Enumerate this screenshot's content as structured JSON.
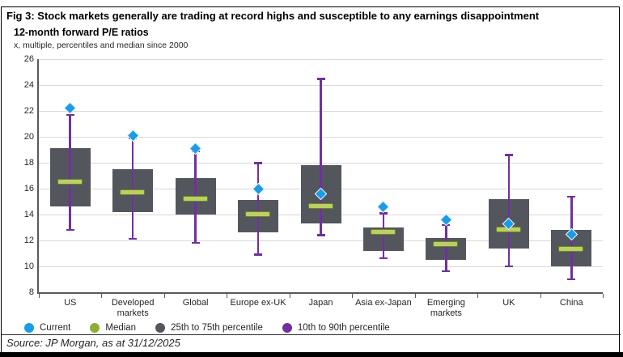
{
  "figure": {
    "title": "Fig 3: Stock markets generally are trading at record highs and susceptible to any earnings disappointment",
    "subtitle": "12-month forward P/E ratios",
    "units_note": "x, multiple, percentiles and median since 2000",
    "source": "Source: JP Morgan, as at 31/12/2025"
  },
  "legend": [
    {
      "label": "Current",
      "color": "#1b9ce4",
      "icon": "circle"
    },
    {
      "label": "Median",
      "color": "#8fae35",
      "icon": "circle"
    },
    {
      "label": "25th to 75th percentile",
      "color": "#53575d",
      "icon": "circle"
    },
    {
      "label": "10th to 90th percentile",
      "color": "#7030a0",
      "icon": "circle"
    }
  ],
  "colors": {
    "box_fill": "#53575d",
    "whisker": "#7030a0",
    "current_marker": "#1b9ce4",
    "median_fill": "#bccf63",
    "median_border": "#6e8428",
    "gridline": "#d9d9d9",
    "axis": "#595959",
    "frame": "#000000"
  },
  "chart_data": {
    "type": "boxplot",
    "title": "12-month forward P/E ratios",
    "subtitle": "x, multiple, percentiles and median since 2000",
    "xlabel": "",
    "ylabel": "12-month forward P/E ratio (x)",
    "ylim": [
      8,
      26
    ],
    "yticks": [
      8,
      10,
      12,
      14,
      16,
      18,
      20,
      22,
      24,
      26
    ],
    "grid": true,
    "legend_position": "bottom",
    "categories": [
      "US",
      "Developed markets",
      "Global",
      "Europe ex-UK",
      "Japan",
      "Asia ex-Japan",
      "Emerging markets",
      "UK",
      "China"
    ],
    "series": [
      {
        "name": "Current",
        "values": [
          22.2,
          20.1,
          19.1,
          16.0,
          15.6,
          14.6,
          13.6,
          13.3,
          12.5
        ]
      },
      {
        "name": "Median",
        "values": [
          16.5,
          15.7,
          15.2,
          14.0,
          14.6,
          12.6,
          11.7,
          12.8,
          11.3
        ]
      },
      {
        "name": "75th percentile",
        "values": [
          19.1,
          17.5,
          16.8,
          15.1,
          17.8,
          13.0,
          12.2,
          15.2,
          12.8
        ]
      },
      {
        "name": "25th percentile",
        "values": [
          14.6,
          14.2,
          14.0,
          12.6,
          13.3,
          11.2,
          10.5,
          11.4,
          10.0
        ]
      },
      {
        "name": "90th percentile",
        "values": [
          21.7,
          19.9,
          18.9,
          18.0,
          24.5,
          14.1,
          13.2,
          18.6,
          15.4
        ]
      },
      {
        "name": "10th percentile",
        "values": [
          12.8,
          12.1,
          11.8,
          10.9,
          12.4,
          10.6,
          9.6,
          10.0,
          9.0
        ]
      }
    ]
  }
}
